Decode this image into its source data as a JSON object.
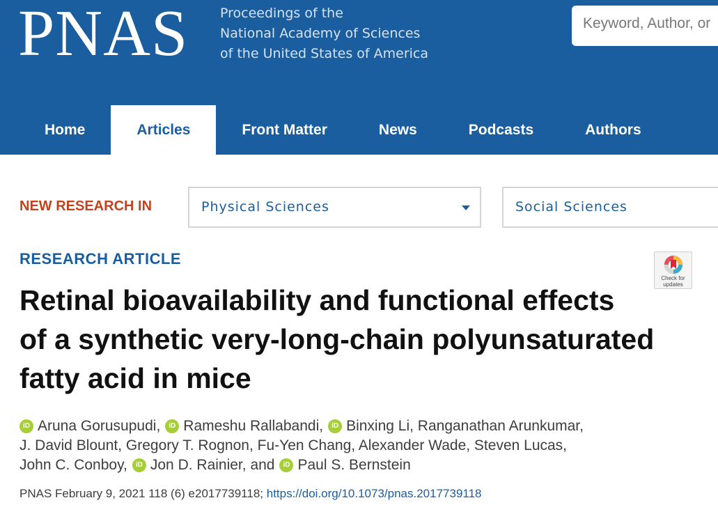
{
  "header": {
    "logo": "PNAS",
    "tagline": [
      "Proceedings of the",
      "National Academy of Sciences",
      "of the United States of America"
    ],
    "search_placeholder": "Keyword, Author, or"
  },
  "nav": {
    "items": [
      {
        "label": "Home",
        "active": false
      },
      {
        "label": "Articles",
        "active": true
      },
      {
        "label": "Front Matter",
        "active": false
      },
      {
        "label": "News",
        "active": false
      },
      {
        "label": "Podcasts",
        "active": false
      },
      {
        "label": "Authors",
        "active": false
      }
    ]
  },
  "new_research": {
    "label": "NEW RESEARCH IN",
    "selects": [
      {
        "value": "Physical Sciences"
      },
      {
        "value": "Social Sciences"
      }
    ]
  },
  "article": {
    "type": "RESEARCH ARTICLE",
    "check_updates_label": [
      "Check for",
      "updates"
    ],
    "title_lines": [
      "Retinal bioavailability and functional effects",
      "of a synthetic very-long-chain polyunsaturated",
      "fatty acid in mice"
    ],
    "author_lines": [
      [
        {
          "orcid": true,
          "text": "Aruna Gorusupudi,"
        },
        {
          "orcid": true,
          "text": "Rameshu Rallabandi,"
        },
        {
          "orcid": true,
          "text": "Binxing Li, Ranganathan Arunkumar,"
        }
      ],
      [
        {
          "orcid": false,
          "text": "J. David Blount, Gregory T. Rognon, Fu-Yen Chang, Alexander Wade, Steven Lucas,"
        }
      ],
      [
        {
          "orcid": false,
          "text": "John C. Conboy,"
        },
        {
          "orcid": true,
          "text": "Jon D. Rainier, and"
        },
        {
          "orcid": true,
          "text": "Paul S. Bernstein"
        }
      ]
    ],
    "orcid_icon_text": "iD",
    "citation": {
      "text": "PNAS February 9, 2021 118 (6) e2017739118;",
      "doi": "https://doi.org/10.1073/pnas.2017739118"
    }
  },
  "colors": {
    "brand_blue": "#1a5e9f",
    "accent_orange": "#c0431f",
    "orcid_green": "#a6ce39"
  }
}
